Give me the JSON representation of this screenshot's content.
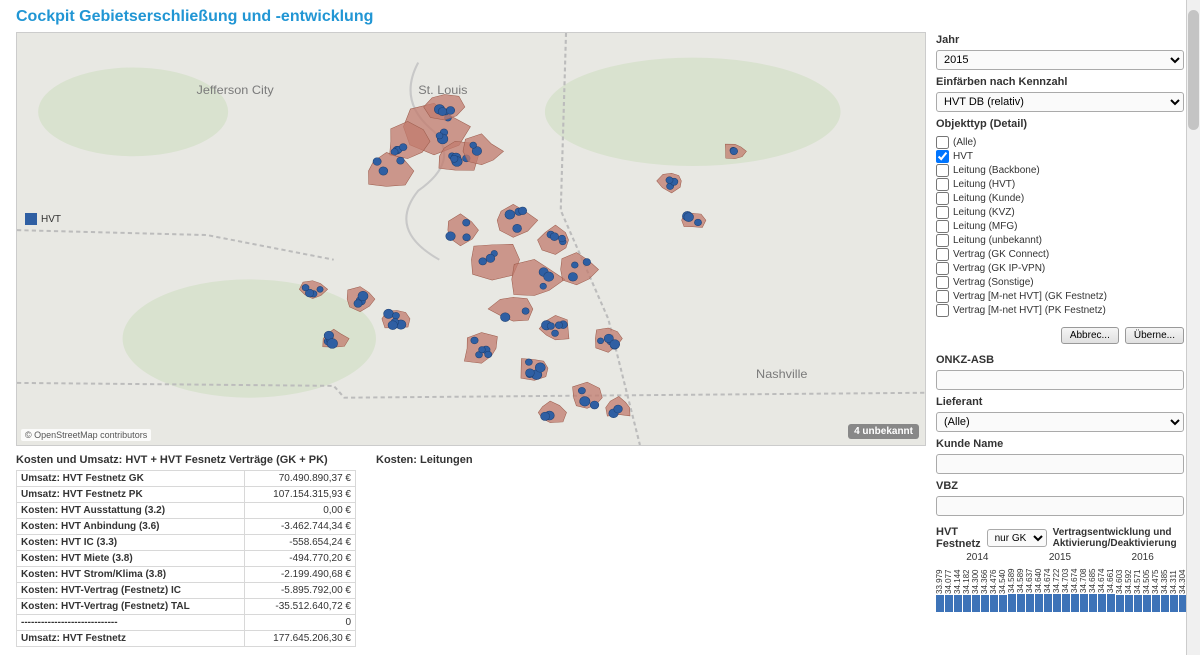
{
  "title": "Cockpit Gebietserschließung und -entwicklung",
  "colors": {
    "accent": "#2196d4",
    "cluster_fill": "#c27b6d",
    "cluster_marker": "#2f5fa3",
    "map_bg": "#e8e8e3",
    "map_forest": "#d9e2cf",
    "map_border": "#bcbcbc",
    "bar_color": "#3d73b8"
  },
  "map": {
    "attribution": "© OpenStreetMap contributors",
    "unknown_badge": "4 unbekannt",
    "cities": [
      "Jefferson City",
      "St. Louis",
      "Nashville"
    ],
    "legend_label": "HVT",
    "legend_color": "#2f5fa3"
  },
  "kosten_section": {
    "heading": "Kosten und Umsatz: HVT + HVT Fesnetz Verträge (GK + PK)",
    "rows": [
      {
        "label": "Umsatz: HVT Festnetz GK",
        "value": "70.490.890,37 €"
      },
      {
        "label": "Umsatz: HVT Festnetz PK",
        "value": "107.154.315,93 €"
      },
      {
        "label": "Kosten: HVT Ausstattung (3.2)",
        "value": "0,00 €"
      },
      {
        "label": "Kosten: HVT Anbindung (3.6)",
        "value": "-3.462.744,34 €"
      },
      {
        "label": "Kosten: HVT IC (3.3)",
        "value": "-558.654,24 €"
      },
      {
        "label": "Kosten: HVT Miete (3.8)",
        "value": "-494.770,20 €"
      },
      {
        "label": "Kosten: HVT Strom/Klima (3.8)",
        "value": "-2.199.490,68 €"
      },
      {
        "label": "Kosten: HVT-Vertrag (Festnetz) IC",
        "value": "-5.895.792,00 €"
      },
      {
        "label": "Kosten: HVT-Vertrag (Festnetz) TAL",
        "value": "-35.512.640,72 €"
      },
      {
        "label": "-----------------------------",
        "value": "0"
      },
      {
        "label": "Umsatz: HVT Festnetz",
        "value": "177.645.206,30 €"
      }
    ]
  },
  "kosten_leitungen_heading": "Kosten: Leitungen",
  "filters": {
    "jahr_label": "Jahr",
    "jahr_value": "2015",
    "kennzahl_label": "Einfärben nach Kennzahl",
    "kennzahl_value": "HVT DB (relativ)",
    "objekttyp_label": "Objekttyp (Detail)",
    "objekttyp_items": [
      {
        "label": "(Alle)",
        "checked": false
      },
      {
        "label": "HVT",
        "checked": true
      },
      {
        "label": "Leitung (Backbone)",
        "checked": false
      },
      {
        "label": "Leitung (HVT)",
        "checked": false
      },
      {
        "label": "Leitung (Kunde)",
        "checked": false
      },
      {
        "label": "Leitung (KVZ)",
        "checked": false
      },
      {
        "label": "Leitung (MFG)",
        "checked": false
      },
      {
        "label": "Leitung (unbekannt)",
        "checked": false
      },
      {
        "label": "Vertrag (GK Connect)",
        "checked": false
      },
      {
        "label": "Vertrag (GK IP-VPN)",
        "checked": false
      },
      {
        "label": "Vertrag (Sonstige)",
        "checked": false
      },
      {
        "label": "Vertrag [M-net HVT] (GK Festnetz)",
        "checked": false
      },
      {
        "label": "Vertrag [M-net HVT] (PK Festnetz)",
        "checked": false
      }
    ],
    "btn_cancel": "Abbrec...",
    "btn_apply": "Überne...",
    "onkz_label": "ONKZ-ASB",
    "onkz_value": "",
    "lieferant_label": "Lieferant",
    "lieferant_value": "(Alle)",
    "kunde_label": "Kunde Name",
    "kunde_value": "",
    "vbz_label": "VBZ",
    "vbz_value": ""
  },
  "hvt_chart": {
    "title": "HVT Festnetz",
    "select_value": "nur GK",
    "subtitle": "Vertragsentwicklung und Aktivierung/Deaktivierung",
    "years": [
      "2014",
      "2015",
      "2016"
    ],
    "bars": [
      {
        "label": "33.979",
        "h": 0.95
      },
      {
        "label": "34.077",
        "h": 0.96
      },
      {
        "label": "34.144",
        "h": 0.96
      },
      {
        "label": "34.182",
        "h": 0.96
      },
      {
        "label": "34.300",
        "h": 0.97
      },
      {
        "label": "34.366",
        "h": 0.97
      },
      {
        "label": "34.476",
        "h": 0.97
      },
      {
        "label": "34.540",
        "h": 0.97
      },
      {
        "label": "34.589",
        "h": 0.98
      },
      {
        "label": "34.589",
        "h": 0.98
      },
      {
        "label": "34.637",
        "h": 0.98
      },
      {
        "label": "34.640",
        "h": 0.98
      },
      {
        "label": "34.674",
        "h": 0.98
      },
      {
        "label": "34.722",
        "h": 0.98
      },
      {
        "label": "34.703",
        "h": 0.98
      },
      {
        "label": "34.674",
        "h": 0.98
      },
      {
        "label": "34.708",
        "h": 0.98
      },
      {
        "label": "34.685",
        "h": 0.98
      },
      {
        "label": "34.674",
        "h": 0.98
      },
      {
        "label": "34.661",
        "h": 0.98
      },
      {
        "label": "34.603",
        "h": 0.97
      },
      {
        "label": "34.592",
        "h": 0.97
      },
      {
        "label": "34.571",
        "h": 0.97
      },
      {
        "label": "34.505",
        "h": 0.97
      },
      {
        "label": "34.475",
        "h": 0.97
      },
      {
        "label": "34.385",
        "h": 0.97
      },
      {
        "label": "34.311",
        "h": 0.96
      },
      {
        "label": "34.304",
        "h": 0.96
      },
      {
        "label": "34.238",
        "h": 0.96
      },
      {
        "label": "34.194",
        "h": 0.96
      },
      {
        "label": "34.149",
        "h": 0.96
      }
    ]
  }
}
